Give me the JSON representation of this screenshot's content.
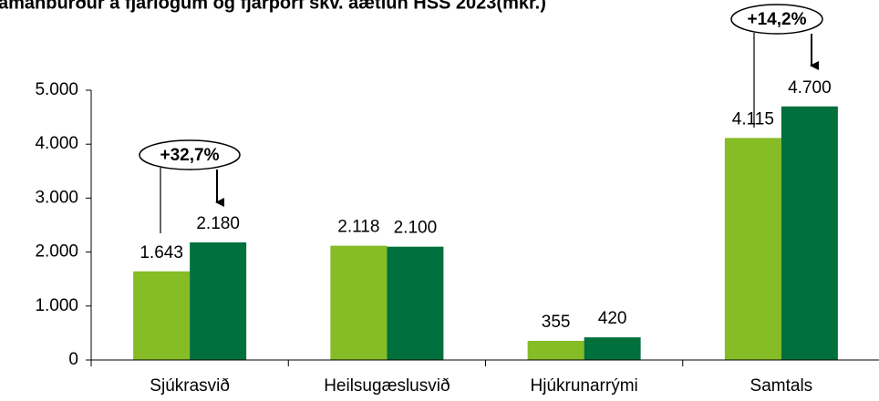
{
  "chart_data": {
    "type": "bar",
    "title": "amanburður á fjárlögum og fjárþörf skv. áætlun HSS 2023(mkr.)",
    "categories": [
      "Sjúkrasvið",
      "Heilsugæslusvið",
      "Hjúkrunarrými",
      "Samtals"
    ],
    "series": [
      {
        "color": "#86bc25",
        "values": [
          1643,
          2118,
          355,
          4115
        ],
        "value_labels": [
          "1.643",
          "2.118",
          "355",
          "4.115"
        ]
      },
      {
        "color": "#00703c",
        "values": [
          2180,
          2100,
          420,
          4700
        ],
        "value_labels": [
          "2.180",
          "2.100",
          "420",
          "4.700"
        ]
      }
    ],
    "ylim": [
      0,
      5000
    ],
    "yticks": [
      0,
      {
        "value": 1000,
        "label": "1.000"
      },
      {
        "value": 2000,
        "label": "2.000"
      },
      {
        "value": 3000,
        "label": "3.000"
      },
      {
        "value": 4000,
        "label": "4.000"
      },
      {
        "value": 5000,
        "label": "5.000"
      }
    ],
    "annotations": [
      "+32,7%",
      "+14,2%"
    ]
  }
}
